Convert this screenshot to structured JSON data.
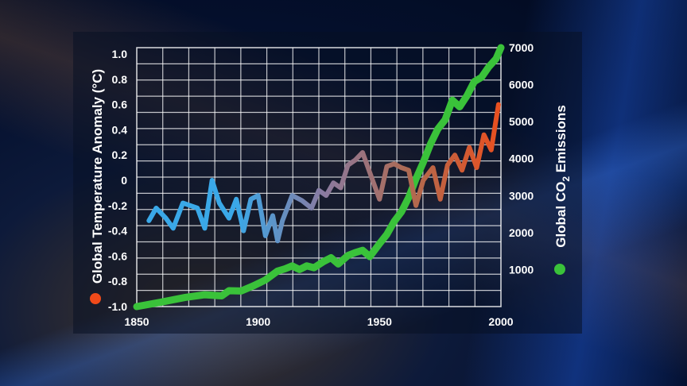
{
  "chart_data": {
    "type": "line",
    "x_ticks": [
      "1850",
      "1900",
      "1950",
      "2000"
    ],
    "y_left_ticks": [
      "1.0",
      "0.8",
      "0.6",
      "0.4",
      "0.2",
      "0",
      "-0.2",
      "-0.4",
      "-0.6",
      "-0.8",
      "-1.0"
    ],
    "y_right_ticks": [
      "7000",
      "6000",
      "5000",
      "4000",
      "3000",
      "2000",
      "1000"
    ],
    "ylabel_left": "Global Temperature Anomaly (°C)",
    "ylabel_right_prefix": "Global CO",
    "ylabel_right_subscript": "2",
    "ylabel_right_suffix": " Emissions",
    "xlim": [
      1850,
      2000
    ],
    "ylim_left": [
      -1.0,
      1.05
    ],
    "ylim_right": [
      0,
      7000
    ],
    "grid": true,
    "legend_markers": {
      "temperature": "left",
      "co2": "right"
    },
    "colors": {
      "temperature_early": "#3aa0e0",
      "temperature_mid": "#a06a5a",
      "temperature_late": "#f04a1a",
      "co2": "#3ac23a",
      "grid": "#ffffff"
    },
    "series": [
      {
        "axis": "left",
        "color_gradient": [
          "#3aa8e8",
          "#3aa8e8",
          "#8a7aa0",
          "#b06a50",
          "#e85020"
        ],
        "x": [
          1855,
          1858,
          1862,
          1865,
          1869,
          1872,
          1875,
          1878,
          1881,
          1884,
          1888,
          1891,
          1894,
          1897,
          1900,
          1903,
          1906,
          1908,
          1910,
          1914,
          1918,
          1922,
          1925,
          1928,
          1931,
          1934,
          1937,
          1940,
          1943,
          1946,
          1950,
          1953,
          1956,
          1959,
          1962,
          1965,
          1968,
          1972,
          1975,
          1978,
          1981,
          1984,
          1987,
          1990,
          1993,
          1996,
          1999
        ],
        "y": [
          -0.32,
          -0.22,
          -0.3,
          -0.38,
          -0.18,
          -0.2,
          -0.22,
          -0.38,
          0.0,
          -0.18,
          -0.3,
          -0.15,
          -0.4,
          -0.15,
          -0.12,
          -0.44,
          -0.28,
          -0.48,
          -0.32,
          -0.12,
          -0.16,
          -0.22,
          -0.08,
          -0.12,
          -0.02,
          -0.06,
          0.12,
          0.16,
          0.22,
          0.06,
          -0.15,
          0.11,
          0.13,
          0.1,
          0.08,
          -0.2,
          0.0,
          0.1,
          -0.15,
          0.12,
          0.2,
          0.08,
          0.26,
          0.1,
          0.36,
          0.24,
          0.6
        ]
      },
      {
        "axis": "right",
        "x": [
          1850,
          1860,
          1870,
          1878,
          1885,
          1888,
          1893,
          1898,
          1903,
          1908,
          1911,
          1914,
          1917,
          1920,
          1923,
          1927,
          1930,
          1933,
          1937,
          1940,
          1943,
          1946,
          1950,
          1953,
          1956,
          1959,
          1962,
          1965,
          1968,
          1971,
          1974,
          1977,
          1980,
          1983,
          1986,
          1989,
          1992,
          1995,
          1998,
          2000
        ],
        "y": [
          0,
          120,
          250,
          320,
          290,
          430,
          420,
          560,
          720,
          960,
          1020,
          1100,
          1000,
          1100,
          1050,
          1220,
          1320,
          1150,
          1380,
          1460,
          1520,
          1350,
          1700,
          1950,
          2300,
          2560,
          2950,
          3450,
          3900,
          4400,
          4800,
          5050,
          5580,
          5400,
          5700,
          6080,
          6200,
          6480,
          6700,
          7000
        ]
      }
    ]
  }
}
